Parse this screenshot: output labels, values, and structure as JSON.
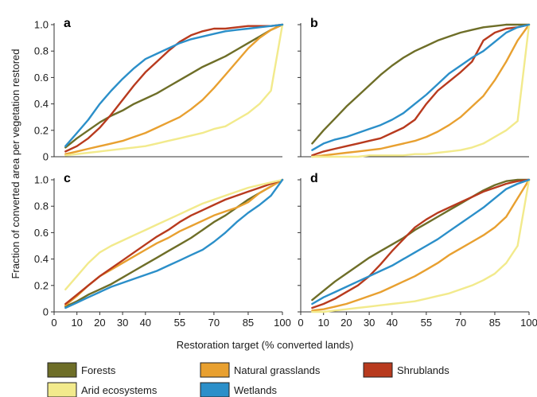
{
  "chart_data": {
    "type": "line",
    "ylabel": "Fraction of converted area per vegetation restored",
    "xlabel": "Restoration target (% converted lands)",
    "xlim": [
      0,
      100
    ],
    "ylim": [
      0,
      1.0
    ],
    "x_ticks": [
      "0",
      "10",
      "20",
      "30",
      "40",
      "55",
      "70",
      "85",
      "100"
    ],
    "y_ticks": [
      "0",
      "0.2",
      "0.4",
      "0.6",
      "0.8",
      "1.0"
    ],
    "x": [
      5,
      10,
      15,
      20,
      25,
      30,
      35,
      40,
      45,
      50,
      55,
      60,
      65,
      70,
      75,
      80,
      85,
      90,
      95,
      100
    ],
    "legend": [
      {
        "name": "Forests",
        "color": "#6e6e28"
      },
      {
        "name": "Natural grasslands",
        "color": "#e8a030"
      },
      {
        "name": "Shrublands",
        "color": "#b83a1e"
      },
      {
        "name": "Arid ecosystems",
        "color": "#f2ea8c"
      },
      {
        "name": "Wetlands",
        "color": "#2b8fc9"
      }
    ],
    "panels": [
      {
        "label": "a",
        "series": [
          {
            "name": "Forests",
            "values": [
              0.07,
              0.14,
              0.2,
              0.26,
              0.31,
              0.35,
              0.4,
              0.44,
              0.48,
              0.53,
              0.58,
              0.63,
              0.68,
              0.72,
              0.76,
              0.81,
              0.86,
              0.91,
              0.96,
              1.0
            ]
          },
          {
            "name": "Natural grasslands",
            "values": [
              0.02,
              0.04,
              0.06,
              0.08,
              0.1,
              0.12,
              0.15,
              0.18,
              0.22,
              0.26,
              0.3,
              0.36,
              0.43,
              0.52,
              0.62,
              0.72,
              0.82,
              0.9,
              0.96,
              1.0
            ]
          },
          {
            "name": "Shrublands",
            "values": [
              0.04,
              0.08,
              0.14,
              0.22,
              0.32,
              0.43,
              0.54,
              0.64,
              0.72,
              0.8,
              0.87,
              0.92,
              0.95,
              0.97,
              0.97,
              0.98,
              0.99,
              0.99,
              0.99,
              1.0
            ]
          },
          {
            "name": "Arid ecosystems",
            "values": [
              0.01,
              0.02,
              0.03,
              0.04,
              0.05,
              0.06,
              0.07,
              0.08,
              0.1,
              0.12,
              0.14,
              0.16,
              0.18,
              0.21,
              0.23,
              0.28,
              0.33,
              0.4,
              0.5,
              1.0
            ]
          },
          {
            "name": "Wetlands",
            "values": [
              0.08,
              0.18,
              0.28,
              0.4,
              0.5,
              0.59,
              0.67,
              0.74,
              0.78,
              0.82,
              0.86,
              0.89,
              0.91,
              0.93,
              0.95,
              0.96,
              0.97,
              0.98,
              0.99,
              1.0
            ]
          }
        ]
      },
      {
        "label": "b",
        "series": [
          {
            "name": "Forests",
            "values": [
              0.1,
              0.2,
              0.29,
              0.38,
              0.46,
              0.54,
              0.62,
              0.69,
              0.75,
              0.8,
              0.84,
              0.88,
              0.91,
              0.94,
              0.96,
              0.98,
              0.99,
              1.0,
              1.0,
              1.0
            ]
          },
          {
            "name": "Natural grasslands",
            "values": [
              0.0,
              0.01,
              0.02,
              0.03,
              0.04,
              0.05,
              0.06,
              0.08,
              0.1,
              0.12,
              0.15,
              0.19,
              0.24,
              0.3,
              0.38,
              0.46,
              0.58,
              0.72,
              0.88,
              1.0
            ]
          },
          {
            "name": "Shrublands",
            "values": [
              0.01,
              0.04,
              0.06,
              0.08,
              0.1,
              0.12,
              0.14,
              0.18,
              0.22,
              0.28,
              0.4,
              0.5,
              0.57,
              0.64,
              0.72,
              0.88,
              0.94,
              0.97,
              0.98,
              1.0
            ]
          },
          {
            "name": "Arid ecosystems",
            "values": [
              0.0,
              0.0,
              0.0,
              0.0,
              0.0,
              0.01,
              0.01,
              0.01,
              0.01,
              0.02,
              0.02,
              0.03,
              0.04,
              0.05,
              0.07,
              0.1,
              0.15,
              0.2,
              0.27,
              1.0
            ]
          },
          {
            "name": "Wetlands",
            "values": [
              0.05,
              0.1,
              0.13,
              0.15,
              0.18,
              0.21,
              0.24,
              0.28,
              0.33,
              0.4,
              0.47,
              0.55,
              0.63,
              0.69,
              0.75,
              0.8,
              0.87,
              0.94,
              0.98,
              1.0
            ]
          }
        ]
      },
      {
        "label": "c",
        "series": [
          {
            "name": "Forests",
            "values": [
              0.04,
              0.08,
              0.13,
              0.17,
              0.21,
              0.26,
              0.31,
              0.36,
              0.41,
              0.46,
              0.51,
              0.56,
              0.62,
              0.68,
              0.73,
              0.79,
              0.85,
              0.9,
              0.95,
              1.0
            ]
          },
          {
            "name": "Natural grasslands",
            "values": [
              0.05,
              0.12,
              0.2,
              0.27,
              0.32,
              0.37,
              0.42,
              0.47,
              0.52,
              0.56,
              0.61,
              0.65,
              0.69,
              0.73,
              0.76,
              0.79,
              0.83,
              0.9,
              0.95,
              1.0
            ]
          },
          {
            "name": "Shrublands",
            "values": [
              0.06,
              0.13,
              0.2,
              0.27,
              0.33,
              0.39,
              0.45,
              0.51,
              0.57,
              0.62,
              0.68,
              0.73,
              0.77,
              0.81,
              0.85,
              0.88,
              0.91,
              0.94,
              0.97,
              1.0
            ]
          },
          {
            "name": "Arid ecosystems",
            "values": [
              0.17,
              0.27,
              0.37,
              0.45,
              0.5,
              0.54,
              0.58,
              0.62,
              0.66,
              0.7,
              0.74,
              0.78,
              0.82,
              0.85,
              0.88,
              0.91,
              0.94,
              0.96,
              0.98,
              1.0
            ]
          },
          {
            "name": "Wetlands",
            "values": [
              0.03,
              0.07,
              0.11,
              0.15,
              0.19,
              0.22,
              0.25,
              0.28,
              0.31,
              0.35,
              0.39,
              0.43,
              0.47,
              0.53,
              0.6,
              0.68,
              0.75,
              0.81,
              0.88,
              1.0
            ]
          }
        ]
      },
      {
        "label": "d",
        "series": [
          {
            "name": "Forests",
            "values": [
              0.09,
              0.16,
              0.23,
              0.29,
              0.35,
              0.41,
              0.46,
              0.51,
              0.56,
              0.62,
              0.67,
              0.72,
              0.77,
              0.82,
              0.87,
              0.92,
              0.96,
              0.99,
              1.0,
              1.0
            ]
          },
          {
            "name": "Natural grasslands",
            "values": [
              0.01,
              0.02,
              0.04,
              0.06,
              0.09,
              0.12,
              0.15,
              0.19,
              0.23,
              0.27,
              0.32,
              0.37,
              0.43,
              0.48,
              0.53,
              0.58,
              0.64,
              0.72,
              0.86,
              1.0
            ]
          },
          {
            "name": "Shrublands",
            "values": [
              0.03,
              0.06,
              0.1,
              0.15,
              0.2,
              0.27,
              0.36,
              0.46,
              0.55,
              0.64,
              0.7,
              0.75,
              0.79,
              0.83,
              0.87,
              0.91,
              0.94,
              0.97,
              0.99,
              1.0
            ]
          },
          {
            "name": "Arid ecosystems",
            "values": [
              0.0,
              0.0,
              0.01,
              0.02,
              0.03,
              0.04,
              0.05,
              0.06,
              0.07,
              0.08,
              0.1,
              0.12,
              0.14,
              0.17,
              0.2,
              0.24,
              0.29,
              0.37,
              0.5,
              1.0
            ]
          },
          {
            "name": "Wetlands",
            "values": [
              0.06,
              0.11,
              0.15,
              0.19,
              0.23,
              0.27,
              0.31,
              0.35,
              0.4,
              0.45,
              0.5,
              0.55,
              0.61,
              0.67,
              0.73,
              0.79,
              0.86,
              0.93,
              0.97,
              1.0
            ]
          }
        ]
      }
    ]
  }
}
